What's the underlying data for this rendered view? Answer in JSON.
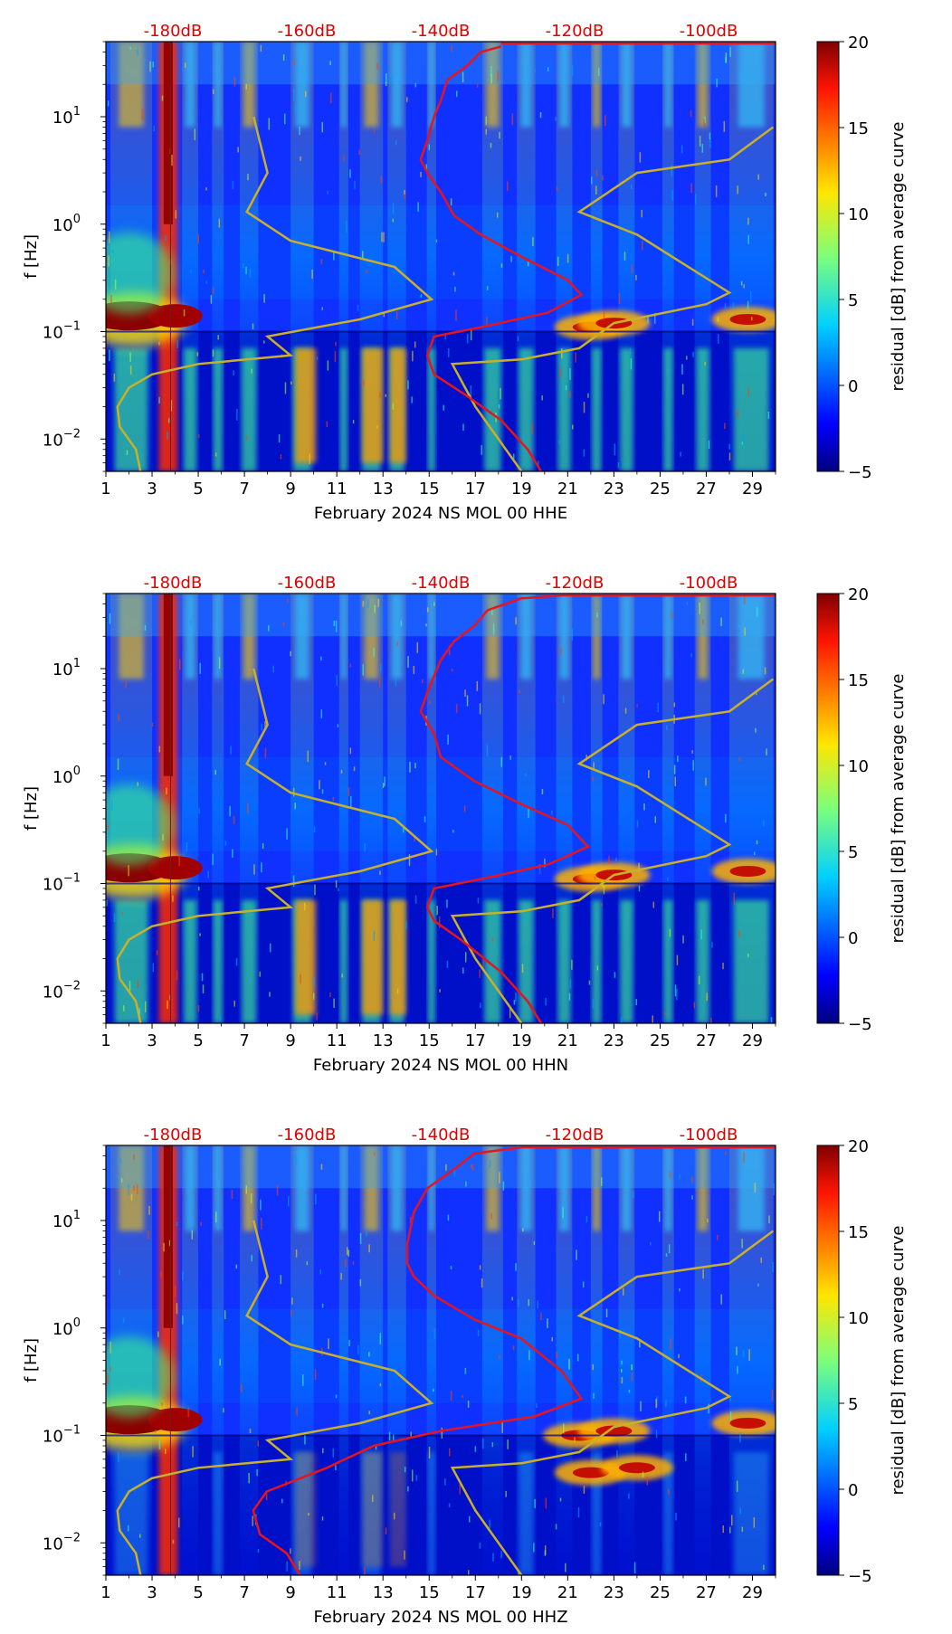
{
  "colors": {
    "noise_red": "#e8141b",
    "model_yellow": "#c8b02a",
    "db_label": "#e00000",
    "event_line": "#6b1e1e"
  },
  "colorbar": {
    "label": "residual [dB] from average curve",
    "range": [
      -5,
      20
    ],
    "ticks": [
      "20",
      "15",
      "10",
      "5",
      "0",
      "−5"
    ],
    "tick_values": [
      20,
      15,
      10,
      5,
      0,
      -5
    ]
  },
  "chart_data": [
    {
      "type": "heatmap",
      "panel": "HHE",
      "xlabel": "February 2024 NS MOL 00 HHE",
      "ylabel": "f [Hz]",
      "x_range": [
        1,
        30
      ],
      "y_range_hz": [
        0.005,
        50
      ],
      "y_scale": "log",
      "xticks": [
        "1",
        "3",
        "5",
        "7",
        "9",
        "11",
        "13",
        "15",
        "17",
        "19",
        "21",
        "23",
        "25",
        "27",
        "29"
      ],
      "yticks": [
        {
          "pre": "10",
          "exp": "1",
          "value": 10
        },
        {
          "pre": "10",
          "exp": "0",
          "value": 1
        },
        {
          "pre": "10",
          "exp": "−1",
          "value": 0.1
        },
        {
          "pre": "10",
          "exp": "−2",
          "value": 0.01
        }
      ],
      "top_axis_labels": [
        "-180dB",
        "-160dB",
        "-140dB",
        "-120dB",
        "-100dB"
      ],
      "top_axis_values_db": [
        -180,
        -160,
        -140,
        -120,
        -100
      ],
      "colorbar_range": [
        -5,
        20
      ],
      "event_line_day": 3.8,
      "series": [
        {
          "name": "noise PSD (top axis, red)",
          "points": [
            [
              -131,
              45
            ],
            [
              -134,
              40
            ],
            [
              -136,
              30
            ],
            [
              -139,
              22
            ],
            [
              -140,
              14
            ],
            [
              -141,
              10
            ],
            [
              -142,
              6
            ],
            [
              -143,
              4
            ],
            [
              -142,
              3
            ],
            [
              -140,
              2
            ],
            [
              -138,
              1.2
            ],
            [
              -134,
              0.8
            ],
            [
              -128,
              0.5
            ],
            [
              -121,
              0.3
            ],
            [
              -119,
              0.22
            ],
            [
              -124,
              0.15
            ],
            [
              -134,
              0.11
            ],
            [
              -141,
              0.09
            ],
            [
              -142,
              0.06
            ],
            [
              -141,
              0.04
            ],
            [
              -136,
              0.025
            ],
            [
              -131,
              0.015
            ],
            [
              -127,
              0.008
            ],
            [
              -125,
              0.005
            ]
          ]
        },
        {
          "name": "station model (yellow)",
          "points": [
            [
              7.4,
              10
            ],
            [
              8.0,
              3
            ],
            [
              7.1,
              1.3
            ],
            [
              9,
              0.7
            ],
            [
              13.5,
              0.4
            ],
            [
              15.1,
              0.2
            ],
            [
              12,
              0.13
            ],
            [
              8,
              0.09
            ],
            [
              9,
              0.06
            ],
            [
              5,
              0.05
            ],
            [
              3,
              0.04
            ],
            [
              2,
              0.03
            ],
            [
              1.5,
              0.02
            ],
            [
              1.6,
              0.013
            ],
            [
              2.3,
              0.008
            ],
            [
              2.5,
              0.005
            ]
          ]
        },
        {
          "name": "station model right (yellow)",
          "points": [
            [
              29.9,
              8
            ],
            [
              28,
              4
            ],
            [
              24,
              3
            ],
            [
              21.5,
              1.3
            ],
            [
              24,
              0.8
            ],
            [
              28,
              0.23
            ],
            [
              27,
              0.18
            ],
            [
              23,
              0.12
            ],
            [
              21.5,
              0.07
            ],
            [
              19,
              0.055
            ],
            [
              16,
              0.05
            ],
            [
              17,
              0.02
            ],
            [
              19,
              0.005
            ]
          ]
        }
      ]
    },
    {
      "type": "heatmap",
      "panel": "HHN",
      "xlabel": "February 2024 NS MOL 00 HHN",
      "ylabel": "f [Hz]",
      "x_range": [
        1,
        30
      ],
      "y_range_hz": [
        0.005,
        50
      ],
      "y_scale": "log",
      "xticks": [
        "1",
        "3",
        "5",
        "7",
        "9",
        "11",
        "13",
        "15",
        "17",
        "19",
        "21",
        "23",
        "25",
        "27",
        "29"
      ],
      "yticks": [
        {
          "pre": "10",
          "exp": "1",
          "value": 10
        },
        {
          "pre": "10",
          "exp": "0",
          "value": 1
        },
        {
          "pre": "10",
          "exp": "−1",
          "value": 0.1
        },
        {
          "pre": "10",
          "exp": "−2",
          "value": 0.01
        }
      ],
      "top_axis_labels": [
        "-180dB",
        "-160dB",
        "-140dB",
        "-120dB",
        "-100dB"
      ],
      "top_axis_values_db": [
        -180,
        -160,
        -140,
        -120,
        -100
      ],
      "colorbar_range": [
        -5,
        20
      ],
      "event_line_day": 3.8,
      "series": [
        {
          "name": "noise PSD (top axis, red)",
          "points": [
            [
              -122,
              48
            ],
            [
              -128,
              45
            ],
            [
              -133,
              35
            ],
            [
              -135,
              25
            ],
            [
              -138,
              18
            ],
            [
              -140,
              12
            ],
            [
              -142,
              6
            ],
            [
              -143,
              4
            ],
            [
              -141,
              2.5
            ],
            [
              -140,
              1.5
            ],
            [
              -135,
              0.9
            ],
            [
              -128,
              0.55
            ],
            [
              -121,
              0.35
            ],
            [
              -118,
              0.22
            ],
            [
              -124,
              0.15
            ],
            [
              -134,
              0.11
            ],
            [
              -141,
              0.09
            ],
            [
              -142,
              0.06
            ],
            [
              -141,
              0.045
            ],
            [
              -137,
              0.03
            ],
            [
              -131,
              0.015
            ],
            [
              -127,
              0.008
            ],
            [
              -125,
              0.005
            ]
          ]
        },
        {
          "name": "station model (yellow)",
          "points": [
            [
              7.4,
              10
            ],
            [
              8.0,
              3
            ],
            [
              7.1,
              1.3
            ],
            [
              9,
              0.7
            ],
            [
              13.5,
              0.4
            ],
            [
              15.1,
              0.2
            ],
            [
              12,
              0.13
            ],
            [
              8,
              0.09
            ],
            [
              9,
              0.06
            ],
            [
              5,
              0.05
            ],
            [
              3,
              0.04
            ],
            [
              2,
              0.03
            ],
            [
              1.5,
              0.02
            ],
            [
              1.6,
              0.013
            ],
            [
              2.3,
              0.008
            ],
            [
              2.5,
              0.005
            ]
          ]
        },
        {
          "name": "station model right (yellow)",
          "points": [
            [
              29.9,
              8
            ],
            [
              28,
              4
            ],
            [
              24,
              3
            ],
            [
              21.5,
              1.3
            ],
            [
              24,
              0.8
            ],
            [
              28,
              0.23
            ],
            [
              27,
              0.18
            ],
            [
              23,
              0.12
            ],
            [
              21.5,
              0.07
            ],
            [
              19,
              0.055
            ],
            [
              16,
              0.05
            ],
            [
              17,
              0.02
            ],
            [
              19,
              0.005
            ]
          ]
        }
      ]
    },
    {
      "type": "heatmap",
      "panel": "HHZ",
      "xlabel": "February 2024 NS MOL 00 HHZ",
      "ylabel": "f [Hz]",
      "x_range": [
        1,
        30
      ],
      "y_range_hz": [
        0.005,
        50
      ],
      "y_scale": "log",
      "xticks": [
        "1",
        "3",
        "5",
        "7",
        "9",
        "11",
        "13",
        "15",
        "17",
        "19",
        "21",
        "23",
        "25",
        "27",
        "29"
      ],
      "yticks": [
        {
          "pre": "10",
          "exp": "1",
          "value": 10
        },
        {
          "pre": "10",
          "exp": "0",
          "value": 1
        },
        {
          "pre": "10",
          "exp": "−1",
          "value": 0.1
        },
        {
          "pre": "10",
          "exp": "−2",
          "value": 0.01
        }
      ],
      "top_axis_labels": [
        "-180dB",
        "-160dB",
        "-140dB",
        "-120dB",
        "-100dB"
      ],
      "top_axis_values_db": [
        -180,
        -160,
        -140,
        -120,
        -100
      ],
      "colorbar_range": [
        -5,
        20
      ],
      "event_line_day": 3.8,
      "series": [
        {
          "name": "noise PSD (top axis, red)",
          "points": [
            [
              -128,
              48
            ],
            [
              -135,
              42
            ],
            [
              -138,
              30
            ],
            [
              -142,
              20
            ],
            [
              -144,
              12
            ],
            [
              -145,
              6
            ],
            [
              -145,
              4
            ],
            [
              -144,
              3
            ],
            [
              -141,
              2
            ],
            [
              -135,
              1.2
            ],
            [
              -128,
              0.8
            ],
            [
              -122,
              0.4
            ],
            [
              -119,
              0.22
            ],
            [
              -126,
              0.15
            ],
            [
              -140,
              0.11
            ],
            [
              -150,
              0.08
            ],
            [
              -157,
              0.05
            ],
            [
              -166,
              0.03
            ],
            [
              -168,
              0.02
            ],
            [
              -167,
              0.012
            ],
            [
              -163,
              0.008
            ],
            [
              -161,
              0.005
            ]
          ]
        },
        {
          "name": "station model (yellow)",
          "points": [
            [
              7.4,
              10
            ],
            [
              8.0,
              3
            ],
            [
              7.1,
              1.3
            ],
            [
              9,
              0.7
            ],
            [
              13.5,
              0.4
            ],
            [
              15.1,
              0.2
            ],
            [
              12,
              0.13
            ],
            [
              8,
              0.09
            ],
            [
              9,
              0.06
            ],
            [
              5,
              0.05
            ],
            [
              3,
              0.04
            ],
            [
              2,
              0.03
            ],
            [
              1.5,
              0.02
            ],
            [
              1.6,
              0.013
            ],
            [
              2.3,
              0.008
            ],
            [
              2.5,
              0.005
            ]
          ]
        },
        {
          "name": "station model right (yellow)",
          "points": [
            [
              29.9,
              8
            ],
            [
              28,
              4
            ],
            [
              24,
              3
            ],
            [
              21.5,
              1.3
            ],
            [
              24,
              0.8
            ],
            [
              28,
              0.23
            ],
            [
              27,
              0.18
            ],
            [
              23,
              0.12
            ],
            [
              21.5,
              0.07
            ],
            [
              19,
              0.055
            ],
            [
              16,
              0.05
            ],
            [
              17,
              0.02
            ],
            [
              19,
              0.005
            ]
          ]
        }
      ]
    }
  ]
}
